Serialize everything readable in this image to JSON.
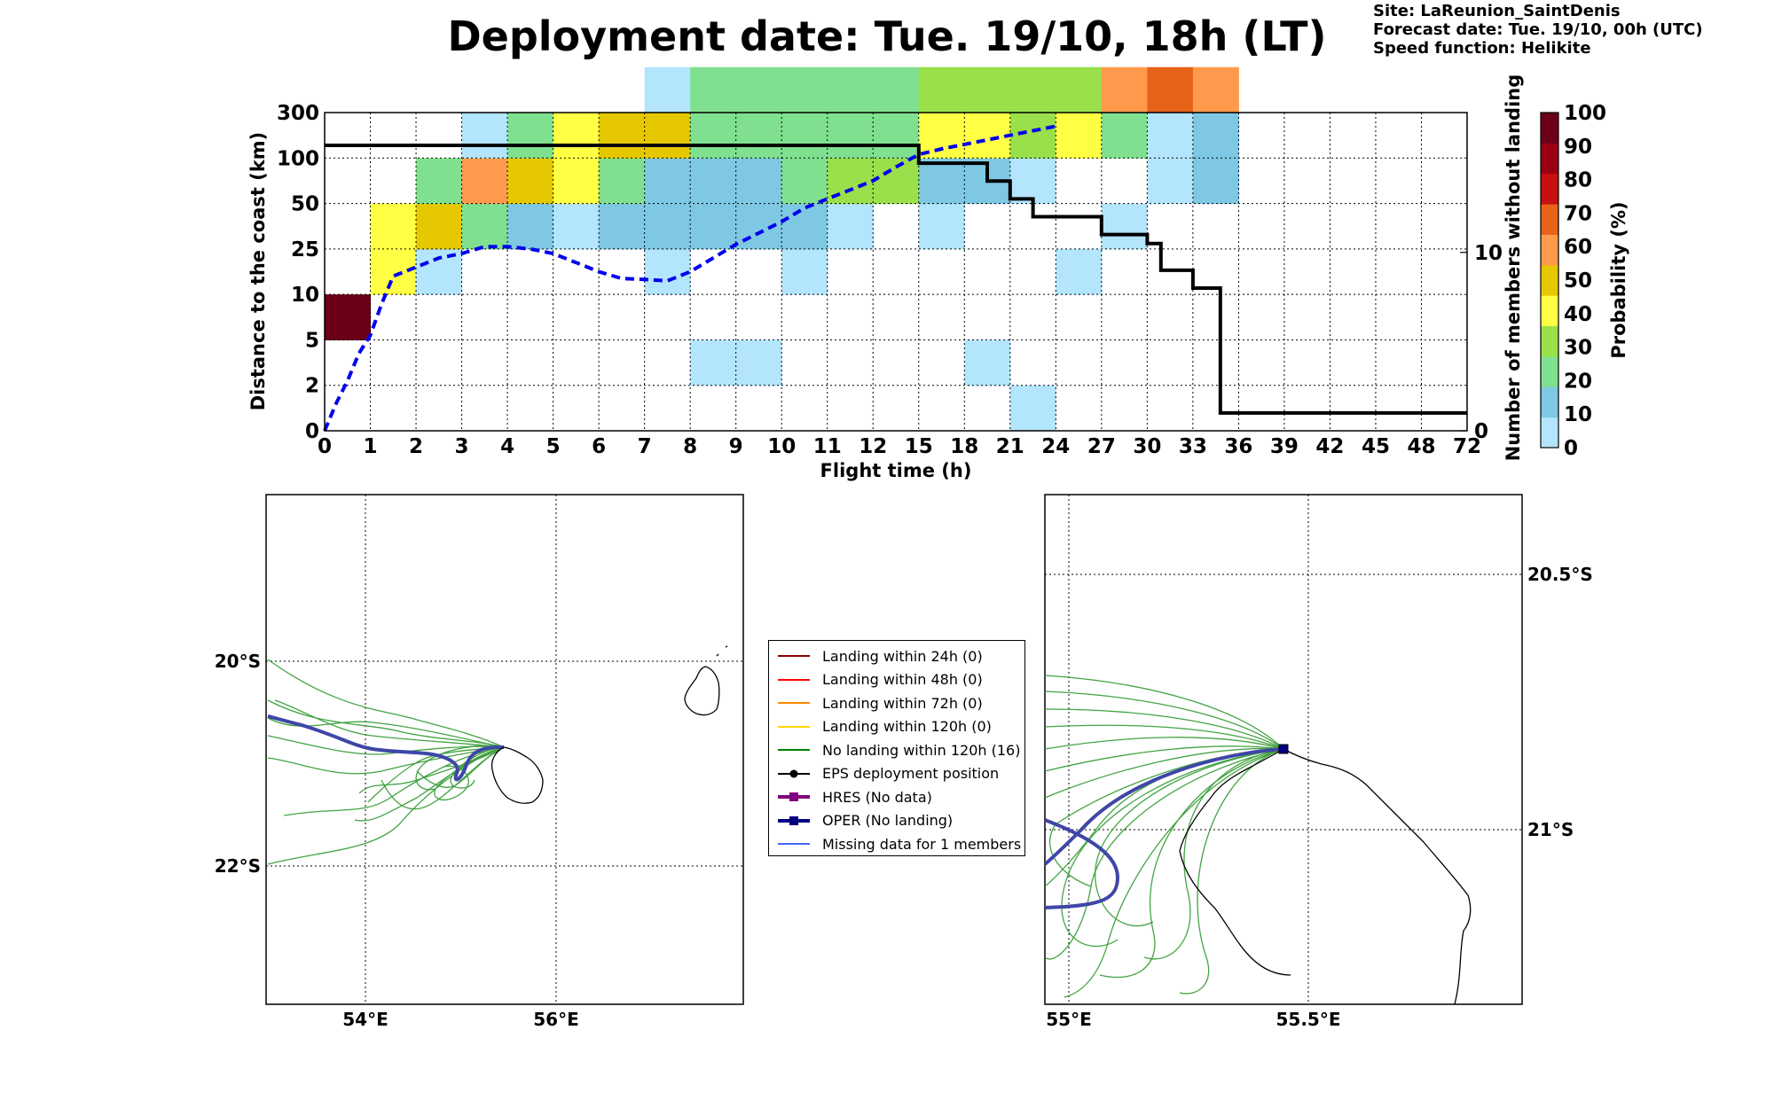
{
  "header": {
    "title": "Deployment date: Tue. 19/10, 18h (LT)",
    "site": "Site: LaReunion_SaintDenis",
    "forecast": "Forecast date: Tue. 19/10, 00h (UTC)",
    "speed": "Speed function: Helikite"
  },
  "chart_data": [
    {
      "type": "heatmap",
      "xlabel": "Flight time (h)",
      "ylabel": "Distance to the coast (km)",
      "y2label": "Number of members without landing",
      "colorbar_label": "Probability (%)",
      "x_ticks": [
        "0",
        "1",
        "2",
        "3",
        "4",
        "5",
        "6",
        "7",
        "8",
        "9",
        "10",
        "11",
        "12",
        "15",
        "18",
        "21",
        "24",
        "27",
        "30",
        "33",
        "36",
        "39",
        "42",
        "45",
        "48",
        "72"
      ],
      "y_ticks": [
        "0",
        "2",
        "5",
        "10",
        "25",
        "50",
        "100",
        "300"
      ],
      "y2_ticks": [
        "0",
        "10"
      ],
      "y2lim": [
        0,
        16
      ],
      "colorbar_ticks": [
        "0",
        "10",
        "20",
        "30",
        "40",
        "50",
        "60",
        "70",
        "80",
        "90",
        "100"
      ],
      "colorbar_colors": [
        "#b3e5fc",
        "#7ec8e3",
        "#7fe08f",
        "#99e04a",
        "#ffff44",
        "#e6c800",
        "#ff9a4d",
        "#e8631a",
        "#c81010",
        "#9b0010",
        "#6b0018"
      ],
      "cells": [
        {
          "t": 0,
          "d": 2,
          "p": 100
        },
        {
          "t": 1,
          "d": 3,
          "p": 40
        },
        {
          "t": 1,
          "d": 4,
          "p": 40
        },
        {
          "t": 2,
          "d": 3,
          "p": 0
        },
        {
          "t": 2,
          "d": 4,
          "p": 50
        },
        {
          "t": 2,
          "d": 5,
          "p": 20
        },
        {
          "t": 3,
          "d": 4,
          "p": 20
        },
        {
          "t": 3,
          "d": 5,
          "p": 60
        },
        {
          "t": 3,
          "d": 6,
          "p": 0
        },
        {
          "t": 4,
          "d": 4,
          "p": 10
        },
        {
          "t": 4,
          "d": 5,
          "p": 50
        },
        {
          "t": 4,
          "d": 6,
          "p": 20
        },
        {
          "t": 5,
          "d": 4,
          "p": 0
        },
        {
          "t": 5,
          "d": 5,
          "p": 40
        },
        {
          "t": 5,
          "d": 6,
          "p": 40
        },
        {
          "t": 6,
          "d": 4,
          "p": 10
        },
        {
          "t": 6,
          "d": 5,
          "p": 20
        },
        {
          "t": 6,
          "d": 6,
          "p": 50
        },
        {
          "t": 7,
          "d": 3,
          "p": 0
        },
        {
          "t": 7,
          "d": 4,
          "p": 10
        },
        {
          "t": 7,
          "d": 5,
          "p": 10
        },
        {
          "t": 7,
          "d": 6,
          "p": 50
        },
        {
          "t": 7,
          "d": 7,
          "p": 0
        },
        {
          "t": 8,
          "d": 1,
          "p": 0
        },
        {
          "t": 8,
          "d": 4,
          "p": 10
        },
        {
          "t": 8,
          "d": 5,
          "p": 10
        },
        {
          "t": 8,
          "d": 6,
          "p": 20
        },
        {
          "t": 8,
          "d": 7,
          "p": 20
        },
        {
          "t": 9,
          "d": 1,
          "p": 0
        },
        {
          "t": 9,
          "d": 4,
          "p": 10
        },
        {
          "t": 9,
          "d": 5,
          "p": 10
        },
        {
          "t": 9,
          "d": 6,
          "p": 20
        },
        {
          "t": 9,
          "d": 7,
          "p": 20
        },
        {
          "t": 10,
          "d": 3,
          "p": 0
        },
        {
          "t": 10,
          "d": 4,
          "p": 10
        },
        {
          "t": 10,
          "d": 5,
          "p": 20
        },
        {
          "t": 10,
          "d": 6,
          "p": 20
        },
        {
          "t": 10,
          "d": 7,
          "p": 20
        },
        {
          "t": 11,
          "d": 4,
          "p": 0
        },
        {
          "t": 11,
          "d": 5,
          "p": 30
        },
        {
          "t": 11,
          "d": 6,
          "p": 20
        },
        {
          "t": 11,
          "d": 7,
          "p": 20
        },
        {
          "t": 12,
          "d": 5,
          "p": 30
        },
        {
          "t": 12,
          "d": 6,
          "p": 20
        },
        {
          "t": 12,
          "d": 7,
          "p": 20
        },
        {
          "t": 13,
          "d": 4,
          "p": 0
        },
        {
          "t": 13,
          "d": 5,
          "p": 10
        },
        {
          "t": 13,
          "d": 6,
          "p": 40
        },
        {
          "t": 13,
          "d": 7,
          "p": 30
        },
        {
          "t": 14,
          "d": 1,
          "p": 0
        },
        {
          "t": 14,
          "d": 5,
          "p": 10
        },
        {
          "t": 14,
          "d": 6,
          "p": 40
        },
        {
          "t": 14,
          "d": 7,
          "p": 30
        },
        {
          "t": 15,
          "d": 0,
          "p": 0
        },
        {
          "t": 15,
          "d": 5,
          "p": 0
        },
        {
          "t": 15,
          "d": 6,
          "p": 30
        },
        {
          "t": 15,
          "d": 7,
          "p": 30
        },
        {
          "t": 16,
          "d": 3,
          "p": 0
        },
        {
          "t": 16,
          "d": 6,
          "p": 40
        },
        {
          "t": 16,
          "d": 7,
          "p": 30
        },
        {
          "t": 17,
          "d": 4,
          "p": 0
        },
        {
          "t": 17,
          "d": 6,
          "p": 20
        },
        {
          "t": 17,
          "d": 7,
          "p": 60
        },
        {
          "t": 18,
          "d": 5,
          "p": 0
        },
        {
          "t": 18,
          "d": 6,
          "p": 0
        },
        {
          "t": 18,
          "d": 7,
          "p": 70
        },
        {
          "t": 19,
          "d": 5,
          "p": 10
        },
        {
          "t": 19,
          "d": 6,
          "p": 10
        },
        {
          "t": 19,
          "d": 7,
          "p": 60
        }
      ],
      "series": [
        {
          "name": "",
          "style": "dashed",
          "color": "#0000ee",
          "points": [
            [
              0,
              0.0
            ],
            [
              0.25,
              0.6
            ],
            [
              0.5,
              1.1
            ],
            [
              0.75,
              1.7
            ],
            [
              1.0,
              2.1
            ],
            [
              1.25,
              2.8
            ],
            [
              1.5,
              3.4
            ],
            [
              2,
              3.6
            ],
            [
              2.5,
              3.8
            ],
            [
              3,
              3.9
            ],
            [
              3.5,
              4.05
            ],
            [
              4,
              4.05
            ],
            [
              4.5,
              4.0
            ],
            [
              5,
              3.9
            ],
            [
              5.5,
              3.7
            ],
            [
              6,
              3.5
            ],
            [
              6.5,
              3.35
            ],
            [
              7,
              3.33
            ],
            [
              7.5,
              3.3
            ],
            [
              8,
              3.5
            ],
            [
              8.5,
              3.8
            ],
            [
              9,
              4.1
            ],
            [
              9.5,
              4.35
            ],
            [
              10,
              4.6
            ],
            [
              10.5,
              4.9
            ],
            [
              11,
              5.1
            ],
            [
              11.5,
              5.3
            ],
            [
              12,
              5.5
            ],
            [
              12.5,
              5.8
            ],
            [
              13,
              6.08
            ],
            [
              13.5,
              6.2
            ],
            [
              14,
              6.3
            ],
            [
              14.5,
              6.4
            ],
            [
              15,
              6.5
            ],
            [
              15.5,
              6.6
            ],
            [
              16,
              6.7
            ]
          ]
        },
        {
          "name": "",
          "style": "solid",
          "color": "#000000",
          "axis": "y2",
          "points": [
            [
              0,
              16
            ],
            [
              13,
              16
            ],
            [
              13,
              15
            ],
            [
              14.5,
              15
            ],
            [
              14.5,
              14
            ],
            [
              15,
              14
            ],
            [
              15,
              13
            ],
            [
              15.5,
              13
            ],
            [
              15.5,
              12
            ],
            [
              17,
              12
            ],
            [
              17,
              11
            ],
            [
              18,
              11
            ],
            [
              18,
              10.5
            ],
            [
              18.3,
              10.5
            ],
            [
              18.3,
              9
            ],
            [
              19,
              9
            ],
            [
              19,
              8
            ],
            [
              19.6,
              8
            ],
            [
              19.6,
              1
            ],
            [
              25,
              1
            ]
          ]
        }
      ]
    }
  ],
  "maps": {
    "left": {
      "lon_ticks": [
        "54°E",
        "56°E"
      ],
      "lat_ticks": [
        "20°S",
        "22°S"
      ]
    },
    "right": {
      "lon_ticks": [
        "55°E",
        "55.5°E"
      ],
      "lat_ticks": [
        "20.5°S",
        "21°S"
      ]
    }
  },
  "legend": [
    {
      "label": "Landing within 24h (0)",
      "color": "#8b0000",
      "marker": "none"
    },
    {
      "label": "Landing within 48h (0)",
      "color": "#ff0000",
      "marker": "none"
    },
    {
      "label": "Landing within 72h (0)",
      "color": "#ff8c00",
      "marker": "none"
    },
    {
      "label": "Landing within 120h (0)",
      "color": "#ffd700",
      "marker": "none"
    },
    {
      "label": "No landing within 120h (16)",
      "color": "#008000",
      "marker": "none"
    },
    {
      "label": "EPS deployment position",
      "color": "#000000",
      "marker": "dot"
    },
    {
      "label": "HRES (No data)",
      "color": "#800080",
      "marker": "square"
    },
    {
      "label": "OPER (No landing)",
      "color": "#000080",
      "marker": "square"
    },
    {
      "label": "Missing data for 1 members",
      "color": "#4466ff",
      "marker": "none"
    }
  ]
}
